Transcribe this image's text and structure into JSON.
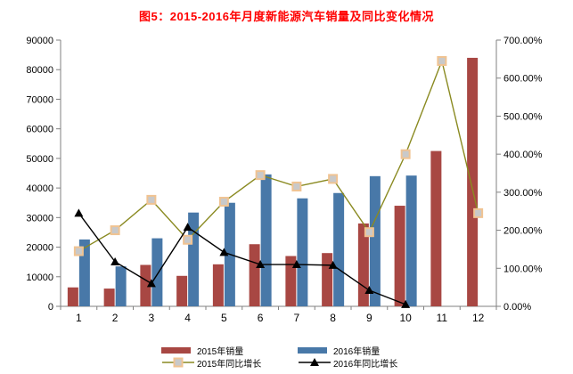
{
  "title": "图5：2015-2016年月度新能源汽车销量及同比变化情况",
  "colors": {
    "title": "#ff0000",
    "bar_2015": "#a84743",
    "bar_2016": "#4878a8",
    "line_2015": "#8a8a21",
    "line_2016": "#000000",
    "marker_square_fill": "#c9c9c9",
    "marker_square_border": "#f0c392",
    "axis": "#808080",
    "tick_text": "#000000"
  },
  "legend": {
    "items": [
      {
        "label": "2015年销量"
      },
      {
        "label": "2015年同比增长"
      },
      {
        "label": "2016年销量"
      },
      {
        "label": "2016年同比增长"
      }
    ]
  },
  "chart_data": {
    "type": "bar",
    "subtype": "combo-bar-line-dual-axis",
    "title": "图5：2015-2016年月度新能源汽车销量及同比变化情况",
    "categories": [
      "1",
      "2",
      "3",
      "4",
      "5",
      "6",
      "7",
      "8",
      "9",
      "10",
      "11",
      "12"
    ],
    "series": [
      {
        "name": "2015年销量",
        "type": "bar",
        "axis": "left",
        "color": "#a84743",
        "values": [
          6400,
          6000,
          14000,
          10300,
          14200,
          21000,
          17000,
          18000,
          28000,
          34000,
          52500,
          84000
        ]
      },
      {
        "name": "2016年销量",
        "type": "bar",
        "axis": "left",
        "color": "#4878a8",
        "values": [
          22600,
          13500,
          23000,
          31700,
          35000,
          44600,
          36500,
          38300,
          44000,
          44200,
          null,
          null
        ]
      },
      {
        "name": "2015年同比增长",
        "type": "line",
        "axis": "right",
        "color": "#8a8a21",
        "marker": "square",
        "values": [
          145,
          200,
          280,
          175,
          275,
          345,
          315,
          335,
          195,
          400,
          645,
          245
        ]
      },
      {
        "name": "2016年同比增长",
        "type": "line",
        "axis": "right",
        "color": "#000000",
        "marker": "triangle",
        "values": [
          245,
          117,
          60,
          208,
          142,
          110,
          110,
          108,
          42,
          5,
          null,
          null
        ]
      }
    ],
    "left_axis": {
      "min": 0,
      "max": 90000,
      "step": 10000,
      "tick_labels": [
        "0",
        "10000",
        "20000",
        "30000",
        "40000",
        "50000",
        "60000",
        "70000",
        "80000",
        "90000"
      ]
    },
    "right_axis": {
      "min": 0,
      "max": 700,
      "step": 100,
      "tick_labels": [
        "0.00%",
        "100.00%",
        "200.00%",
        "300.00%",
        "400.00%",
        "500.00%",
        "600.00%",
        "700.00%"
      ]
    },
    "xlabel": "",
    "ylabel": "",
    "grid": false,
    "legend_position": "bottom"
  }
}
